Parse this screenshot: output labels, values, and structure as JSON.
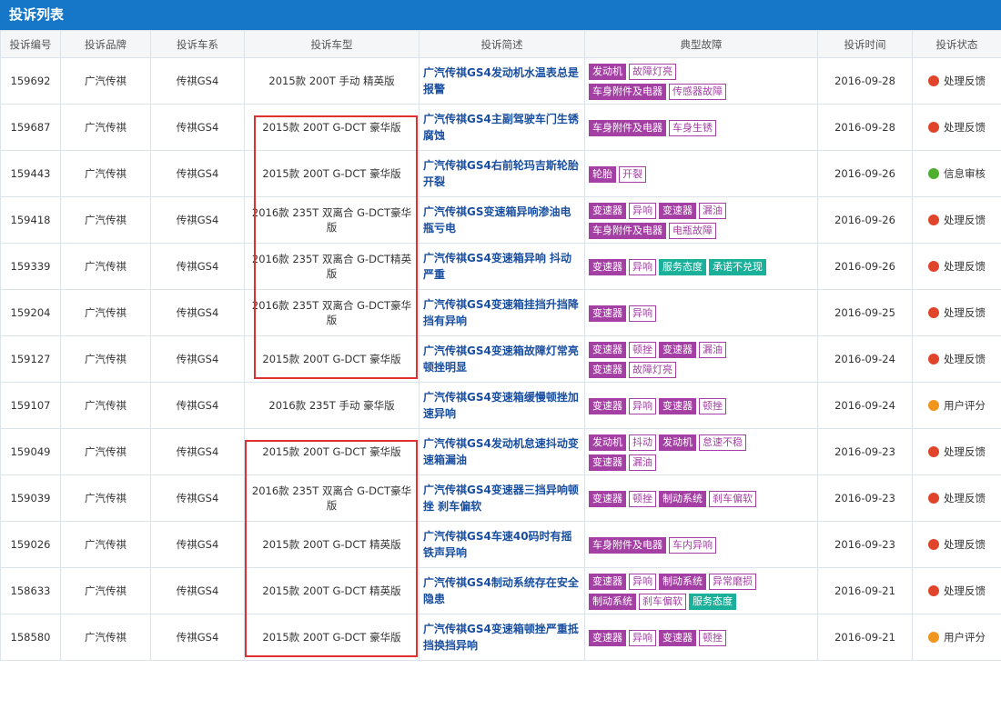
{
  "header": {
    "title": "投诉列表"
  },
  "table": {
    "columns": [
      "投诉编号",
      "投诉品牌",
      "投诉车系",
      "投诉车型",
      "投诉简述",
      "典型故障",
      "投诉时间",
      "投诉状态"
    ],
    "rows": [
      {
        "id": "159692",
        "brand": "广汽传祺",
        "series": "传祺GS4",
        "model": "2015款 200T 手动 精英版",
        "summary": "广汽传祺GS4发动机水温表总是报警",
        "faults": [
          [
            "发动机",
            "故障灯亮"
          ],
          [
            "车身附件及电器",
            "传感器故障"
          ]
        ],
        "service": [],
        "date": "2016-09-28",
        "status": {
          "text": "处理反馈",
          "color": "#e0452b"
        }
      },
      {
        "id": "159687",
        "brand": "广汽传祺",
        "series": "传祺GS4",
        "model": "2015款 200T G-DCT 豪华版",
        "summary": "广汽传祺GS4主副驾驶车门生锈腐蚀",
        "faults": [
          [
            "车身附件及电器",
            "车身生锈"
          ]
        ],
        "service": [],
        "date": "2016-09-28",
        "status": {
          "text": "处理反馈",
          "color": "#e0452b"
        }
      },
      {
        "id": "159443",
        "brand": "广汽传祺",
        "series": "传祺GS4",
        "model": "2015款 200T G-DCT 豪华版",
        "summary": "广汽传祺GS4右前轮玛吉斯轮胎开裂",
        "faults": [
          [
            "轮胎",
            "开裂"
          ]
        ],
        "service": [],
        "date": "2016-09-26",
        "status": {
          "text": "信息审核",
          "color": "#4caf2e"
        }
      },
      {
        "id": "159418",
        "brand": "广汽传祺",
        "series": "传祺GS4",
        "model": "2016款 235T 双离合 G-DCT豪华版",
        "summary": "广汽传祺GS变速箱异响渗油电瓶亏电",
        "faults": [
          [
            "变速器",
            "异响"
          ],
          [
            "变速器",
            "漏油"
          ],
          [
            "车身附件及电器",
            "电瓶故障"
          ]
        ],
        "service": [],
        "date": "2016-09-26",
        "status": {
          "text": "处理反馈",
          "color": "#e0452b"
        }
      },
      {
        "id": "159339",
        "brand": "广汽传祺",
        "series": "传祺GS4",
        "model": "2016款 235T 双离合 G-DCT精英版",
        "summary": "广汽传祺GS4变速箱异响 抖动严重",
        "faults": [
          [
            "变速器",
            "异响"
          ]
        ],
        "service": [
          "服务态度",
          "承诺不兑现"
        ],
        "date": "2016-09-26",
        "status": {
          "text": "处理反馈",
          "color": "#e0452b"
        }
      },
      {
        "id": "159204",
        "brand": "广汽传祺",
        "series": "传祺GS4",
        "model": "2016款 235T 双离合 G-DCT豪华版",
        "summary": "广汽传祺GS4变速箱挂挡升挡降挡有异响",
        "faults": [
          [
            "变速器",
            "异响"
          ]
        ],
        "service": [],
        "date": "2016-09-25",
        "status": {
          "text": "处理反馈",
          "color": "#e0452b"
        }
      },
      {
        "id": "159127",
        "brand": "广汽传祺",
        "series": "传祺GS4",
        "model": "2015款 200T G-DCT 豪华版",
        "summary": "广汽传祺GS4变速箱故障灯常亮 顿挫明显",
        "faults": [
          [
            "变速器",
            "顿挫"
          ],
          [
            "变速器",
            "漏油"
          ],
          [
            "变速器",
            "故障灯亮"
          ]
        ],
        "service": [],
        "date": "2016-09-24",
        "status": {
          "text": "处理反馈",
          "color": "#e0452b"
        }
      },
      {
        "id": "159107",
        "brand": "广汽传祺",
        "series": "传祺GS4",
        "model": "2016款 235T 手动 豪华版",
        "summary": "广汽传祺GS4变速箱缓慢顿挫加速异响",
        "faults": [
          [
            "变速器",
            "异响"
          ],
          [
            "变速器",
            "顿挫"
          ]
        ],
        "service": [],
        "date": "2016-09-24",
        "status": {
          "text": "用户评分",
          "color": "#f0961e"
        }
      },
      {
        "id": "159049",
        "brand": "广汽传祺",
        "series": "传祺GS4",
        "model": "2015款 200T G-DCT 豪华版",
        "summary": "广汽传祺GS4发动机怠速抖动变速箱漏油",
        "faults": [
          [
            "发动机",
            "抖动"
          ],
          [
            "发动机",
            "怠速不稳"
          ],
          [
            "变速器",
            "漏油"
          ]
        ],
        "service": [],
        "date": "2016-09-23",
        "status": {
          "text": "处理反馈",
          "color": "#e0452b"
        }
      },
      {
        "id": "159039",
        "brand": "广汽传祺",
        "series": "传祺GS4",
        "model": "2016款 235T 双离合 G-DCT豪华版",
        "summary": "广汽传祺GS4变速器三挡异响顿挫 刹车偏软",
        "faults": [
          [
            "变速器",
            "顿挫"
          ],
          [
            "制动系统",
            "刹车偏软"
          ]
        ],
        "service": [],
        "date": "2016-09-23",
        "status": {
          "text": "处理反馈",
          "color": "#e0452b"
        }
      },
      {
        "id": "159026",
        "brand": "广汽传祺",
        "series": "传祺GS4",
        "model": "2015款 200T G-DCT 精英版",
        "summary": "广汽传祺GS4车速40码时有摇铁声异响",
        "faults": [
          [
            "车身附件及电器",
            "车内异响"
          ]
        ],
        "service": [],
        "date": "2016-09-23",
        "status": {
          "text": "处理反馈",
          "color": "#e0452b"
        }
      },
      {
        "id": "158633",
        "brand": "广汽传祺",
        "series": "传祺GS4",
        "model": "2015款 200T G-DCT 精英版",
        "summary": "广汽传祺GS4制动系统存在安全隐患",
        "faults": [
          [
            "变速器",
            "异响"
          ],
          [
            "制动系统",
            "异常磨损"
          ],
          [
            "制动系统",
            "刹车偏软"
          ]
        ],
        "service": [
          "服务态度"
        ],
        "date": "2016-09-21",
        "status": {
          "text": "处理反馈",
          "color": "#e0452b"
        }
      },
      {
        "id": "158580",
        "brand": "广汽传祺",
        "series": "传祺GS4",
        "model": "2015款 200T G-DCT 豪华版",
        "summary": "广汽传祺GS4变速箱顿挫严重抵挡换挡异响",
        "faults": [
          [
            "变速器",
            "异响"
          ],
          [
            "变速器",
            "顿挫"
          ]
        ],
        "service": [],
        "date": "2016-09-21",
        "status": {
          "text": "用户评分",
          "color": "#f0961e"
        }
      }
    ]
  }
}
